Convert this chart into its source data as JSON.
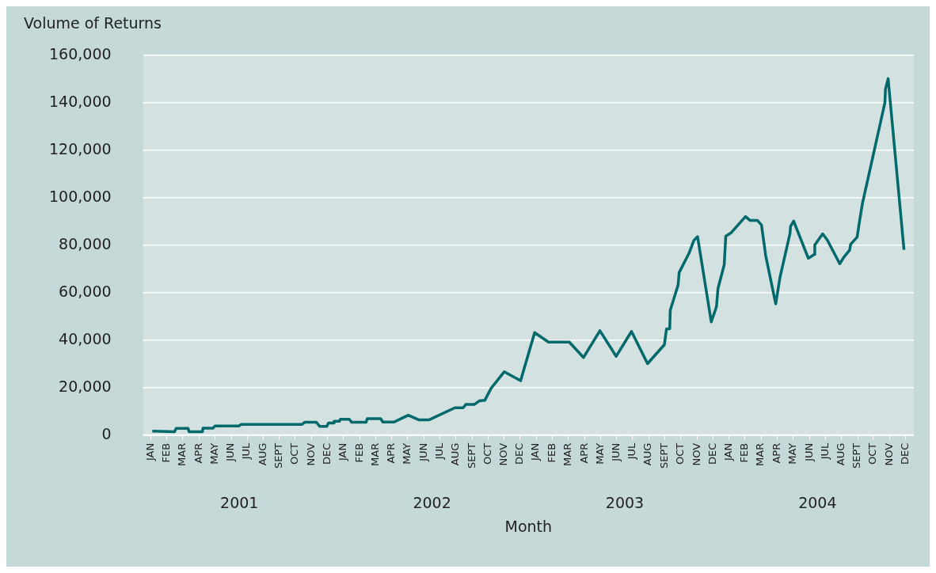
{
  "chart_data": {
    "type": "line",
    "ylabel": "Volume of Returns",
    "xlabel": "Month",
    "x": [
      "2001-01-19",
      "2001-02-28",
      "2001-03-03",
      "2001-03-26",
      "2001-03-28",
      "2001-04-22",
      "2001-04-23",
      "2001-05-12",
      "2001-05-16",
      "2001-06-30",
      "2001-07-04",
      "2001-10-29",
      "2001-11-03",
      "2001-11-25",
      "2001-12-01",
      "2001-12-15",
      "2001-12-18",
      "2001-12-28",
      "2001-12-29",
      "2002-01-08",
      "2002-01-10",
      "2002-01-27",
      "2002-02-01",
      "2002-02-26",
      "2002-02-28",
      "2002-03-26",
      "2002-03-30",
      "2002-04-20",
      "2002-05-17",
      "2002-06-07",
      "2002-06-25",
      "2002-08-14",
      "2002-08-30",
      "2002-09-04",
      "2002-09-20",
      "2002-09-29",
      "2002-10-10",
      "2002-10-22",
      "2002-11-16",
      "2002-12-17",
      "2003-01-13",
      "2003-02-08",
      "2003-03-18",
      "2003-04-14",
      "2003-05-15",
      "2003-06-15",
      "2003-07-14",
      "2003-08-14",
      "2003-09-15",
      "2003-09-19",
      "2003-09-25",
      "2003-09-26",
      "2003-10-11",
      "2003-10-13",
      "2003-11-01",
      "2003-11-10",
      "2003-11-17",
      "2003-12-13",
      "2003-12-23",
      "2003-12-26",
      "2004-01-07",
      "2004-01-10",
      "2004-01-21",
      "2004-02-16",
      "2004-02-24",
      "2004-03-09",
      "2004-03-17",
      "2004-03-25",
      "2004-04-13",
      "2004-04-21",
      "2004-05-10",
      "2004-05-11",
      "2004-05-17",
      "2004-06-14",
      "2004-06-25",
      "2004-06-26",
      "2004-07-11",
      "2004-07-20",
      "2004-08-13",
      "2004-08-21",
      "2004-09-01",
      "2004-09-03",
      "2004-09-15",
      "2004-09-20",
      "2004-09-25",
      "2004-11-07",
      "2004-11-08",
      "2004-11-13",
      "2004-12-13"
    ],
    "series": [
      {
        "color": "#00696b",
        "values": [
          1700,
          1400,
          2800,
          2800,
          1400,
          1400,
          2900,
          2900,
          3800,
          3800,
          4500,
          4500,
          5400,
          5400,
          3700,
          3700,
          5100,
          5100,
          5800,
          5800,
          6700,
          6700,
          5400,
          5400,
          6900,
          6900,
          5500,
          5500,
          8400,
          6400,
          6400,
          11500,
          11500,
          12900,
          12900,
          14400,
          14700,
          19700,
          26700,
          22900,
          43200,
          39200,
          39200,
          32700,
          44000,
          33200,
          43700,
          30100,
          38100,
          44800,
          44800,
          52600,
          63300,
          68500,
          76600,
          82000,
          83600,
          47700,
          54100,
          61800,
          71800,
          83800,
          85400,
          92100,
          90500,
          90500,
          88500,
          75700,
          55300,
          66500,
          85000,
          87900,
          90200,
          74500,
          76100,
          80100,
          84800,
          82200,
          72200,
          75000,
          77900,
          80400,
          83400,
          90700,
          97600,
          140100,
          145800,
          150200,
          78100
        ]
      }
    ],
    "ylim": [
      0,
      160000
    ],
    "yticks": [
      0,
      {
        "value": 20000,
        "label": "20,000"
      },
      {
        "value": 40000,
        "label": "40,000"
      },
      {
        "value": 60000,
        "label": "60,000"
      },
      {
        "value": 80000,
        "label": "80,000"
      },
      {
        "value": 100000,
        "label": "100,000"
      },
      {
        "value": 120000,
        "label": "120,000"
      },
      {
        "value": 140000,
        "label": "140,000"
      },
      {
        "value": 160000,
        "label": "160,000"
      }
    ],
    "xlim": [
      "2001-01-01",
      "2005-01-01"
    ],
    "xticks": [
      {
        "value": "2001-01-16",
        "label": "JAN"
      },
      {
        "value": "2001-02-15",
        "label": "FEB"
      },
      {
        "value": "2001-03-16",
        "label": "MAR"
      },
      {
        "value": "2001-04-16",
        "label": "APR"
      },
      {
        "value": "2001-05-16",
        "label": "MAY"
      },
      {
        "value": "2001-06-16",
        "label": "JUN"
      },
      {
        "value": "2001-07-16",
        "label": "JUL"
      },
      {
        "value": "2001-08-16",
        "label": "AUG"
      },
      {
        "value": "2001-09-16",
        "label": "SEPT"
      },
      {
        "value": "2001-10-16",
        "label": "OCT"
      },
      {
        "value": "2001-11-16",
        "label": "NOV"
      },
      {
        "value": "2001-12-16",
        "label": "DEC"
      },
      {
        "value": "2002-01-16",
        "label": "JAN"
      },
      {
        "value": "2002-02-15",
        "label": "FEB"
      },
      {
        "value": "2002-03-16",
        "label": "MAR"
      },
      {
        "value": "2002-04-16",
        "label": "APR"
      },
      {
        "value": "2002-05-16",
        "label": "MAY"
      },
      {
        "value": "2002-06-16",
        "label": "JUN"
      },
      {
        "value": "2002-07-16",
        "label": "JUL"
      },
      {
        "value": "2002-08-16",
        "label": "AUG"
      },
      {
        "value": "2002-09-16",
        "label": "SEPT"
      },
      {
        "value": "2002-10-16",
        "label": "OCT"
      },
      {
        "value": "2002-11-16",
        "label": "NOV"
      },
      {
        "value": "2002-12-16",
        "label": "DEC"
      },
      {
        "value": "2003-01-16",
        "label": "JAN"
      },
      {
        "value": "2003-02-15",
        "label": "FEB"
      },
      {
        "value": "2003-03-16",
        "label": "MAR"
      },
      {
        "value": "2003-04-16",
        "label": "APR"
      },
      {
        "value": "2003-05-16",
        "label": "MAY"
      },
      {
        "value": "2003-06-16",
        "label": "JUN"
      },
      {
        "value": "2003-07-16",
        "label": "JUL"
      },
      {
        "value": "2003-08-16",
        "label": "AUG"
      },
      {
        "value": "2003-09-16",
        "label": "SEPT"
      },
      {
        "value": "2003-10-16",
        "label": "OCT"
      },
      {
        "value": "2003-11-16",
        "label": "NOV"
      },
      {
        "value": "2003-12-16",
        "label": "DEC"
      },
      {
        "value": "2004-01-16",
        "label": "JAN"
      },
      {
        "value": "2004-02-15",
        "label": "FEB"
      },
      {
        "value": "2004-03-16",
        "label": "MAR"
      },
      {
        "value": "2004-04-16",
        "label": "APR"
      },
      {
        "value": "2004-05-16",
        "label": "MAY"
      },
      {
        "value": "2004-06-16",
        "label": "JUN"
      },
      {
        "value": "2004-07-16",
        "label": "JUL"
      },
      {
        "value": "2004-08-16",
        "label": "AUG"
      },
      {
        "value": "2004-09-16",
        "label": "SEPT"
      },
      {
        "value": "2004-10-16",
        "label": "OCT"
      },
      {
        "value": "2004-11-16",
        "label": "NOV"
      },
      {
        "value": "2004-12-16",
        "label": "DEC"
      }
    ],
    "annotations": [
      "2001",
      "2002",
      "2003",
      "2004"
    ],
    "grid": "y",
    "legend": false
  }
}
